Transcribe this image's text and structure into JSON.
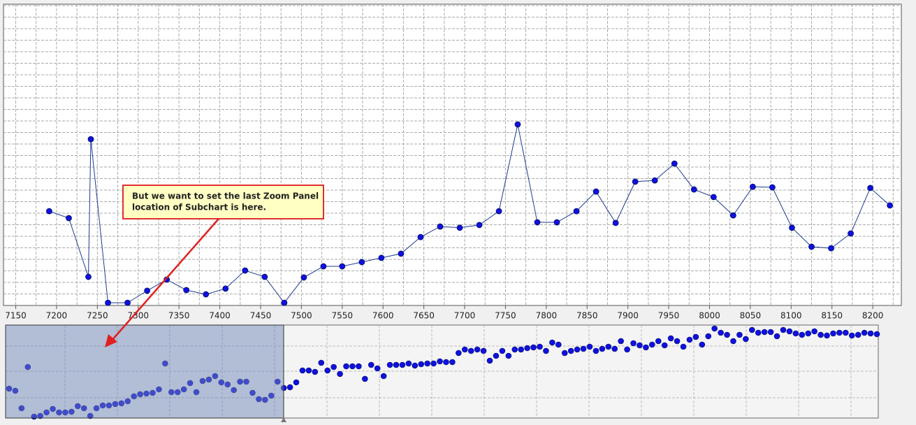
{
  "chart_data": [
    {
      "type": "line",
      "color": "#1d3b8f",
      "marker_color": "#1010e0",
      "x": [
        7191,
        7215,
        7239,
        7242,
        7263,
        7287,
        7311,
        7335,
        7359,
        7383,
        7407,
        7431,
        7455,
        7479,
        7503,
        7527,
        7550,
        7574,
        7598,
        7622,
        7646,
        7670,
        7694,
        7718,
        7742,
        7765,
        7789,
        7813,
        7837,
        7861,
        7885,
        7909,
        7933,
        7957,
        7981,
        8005,
        8029,
        8053,
        8077,
        8101,
        8125,
        8149,
        8173,
        8197,
        8221
      ],
      "values": [
        31.3,
        29.0,
        9.5,
        55.2,
        0.9,
        0.9,
        4.9,
        8.6,
        5.1,
        3.7,
        5.6,
        11.6,
        9.5,
        0.9,
        9.3,
        13.0,
        13.0,
        14.4,
        15.8,
        17.2,
        22.7,
        26.2,
        25.8,
        26.7,
        31.3,
        60.1,
        27.6,
        27.6,
        31.3,
        37.8,
        27.4,
        41.1,
        41.5,
        47.1,
        38.5,
        36.0,
        29.9,
        39.4,
        39.2,
        25.8,
        19.5,
        19.0,
        23.9,
        39.0,
        33.2
      ],
      "xlim": [
        7135,
        8235
      ],
      "ylim": [
        0,
        100
      ],
      "xticks": [
        7150,
        7200,
        7250,
        7300,
        7350,
        7400,
        7450,
        7500,
        7550,
        7600,
        7650,
        7700,
        7750,
        7800,
        7850,
        7900,
        7950,
        8000,
        8050,
        8100,
        8150,
        8200
      ],
      "grid": true,
      "annotation": [
        "But we want to set the last Zoom Panel",
        "location of Subchart is here."
      ]
    },
    {
      "type": "scatter",
      "color": "#1010e0",
      "ylim": [
        0,
        133
      ],
      "values": [
        42,
        39,
        14,
        73,
        2,
        3,
        8,
        13,
        8,
        8,
        9,
        17,
        14,
        3,
        14,
        18,
        18,
        20,
        21,
        24,
        31,
        34,
        35,
        36,
        41,
        78,
        37,
        37,
        41,
        50,
        37,
        53,
        55,
        60,
        51,
        48,
        40,
        52,
        52,
        36,
        27,
        26,
        32,
        52,
        43,
        44,
        51,
        68,
        68,
        66,
        79,
        68,
        73,
        63,
        74,
        74,
        74,
        56,
        76,
        71,
        60,
        76,
        76,
        76,
        78,
        75,
        77,
        78,
        78,
        81,
        80,
        80,
        93,
        98,
        96,
        98,
        96,
        82,
        89,
        96,
        89,
        98,
        98,
        100,
        101,
        102,
        96,
        108,
        105,
        93,
        96,
        98,
        99,
        102,
        96,
        99,
        102,
        99,
        110,
        98,
        107,
        104,
        101,
        105,
        110,
        104,
        114,
        110,
        102,
        112,
        116,
        105,
        117,
        128,
        122,
        119,
        110,
        119,
        113,
        126,
        122,
        123,
        123,
        117,
        126,
        124,
        121,
        119,
        121,
        124,
        119,
        118,
        121,
        122,
        122,
        118,
        119,
        122,
        121,
        120
      ]
    }
  ]
}
